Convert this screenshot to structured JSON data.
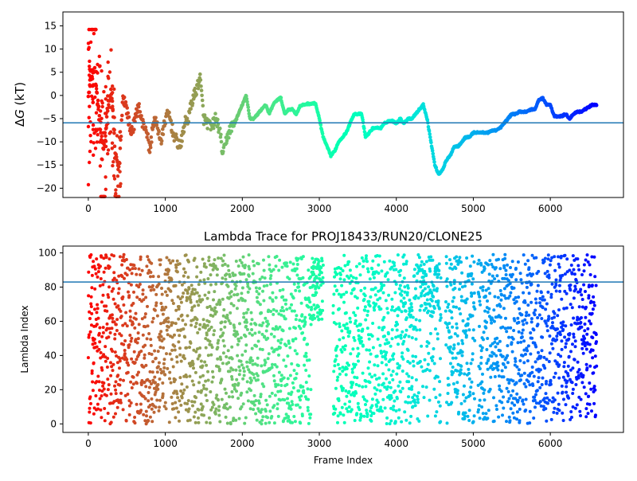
{
  "chart_data": [
    {
      "type": "scatter",
      "title": "",
      "xlabel": "",
      "ylabel": "ΔG (kT)",
      "ylabel_parts": {
        "delta": "Δ",
        "var": "G",
        "unit": " (kT)"
      },
      "xlim": [
        -330,
        6950
      ],
      "ylim": [
        -22,
        18
      ],
      "xticks": [
        0,
        1000,
        2000,
        3000,
        4000,
        5000,
        6000
      ],
      "yticks": [
        -20,
        -15,
        -10,
        -5,
        0,
        5,
        10,
        15
      ],
      "hline": -5.9,
      "hline_color": "#1f77b4",
      "colormap": "rainbow (reversed by frame index)",
      "trace_points": [
        [
          0,
          0
        ],
        [
          40,
          4
        ],
        [
          80,
          6
        ],
        [
          120,
          -1
        ],
        [
          160,
          -8
        ],
        [
          200,
          -12
        ],
        [
          250,
          -3
        ],
        [
          300,
          1
        ],
        [
          350,
          -13
        ],
        [
          400,
          -16
        ],
        [
          450,
          0
        ],
        [
          500,
          -3
        ],
        [
          550,
          -8
        ],
        [
          600,
          -6
        ],
        [
          650,
          -2
        ],
        [
          700,
          -6
        ],
        [
          750,
          -7
        ],
        [
          800,
          -12
        ],
        [
          850,
          -5
        ],
        [
          900,
          -7
        ],
        [
          950,
          -10
        ],
        [
          1000,
          -5
        ],
        [
          1050,
          -4
        ],
        [
          1100,
          -8
        ],
        [
          1150,
          -10
        ],
        [
          1200,
          -11
        ],
        [
          1250,
          -6
        ],
        [
          1300,
          -5
        ],
        [
          1350,
          -1
        ],
        [
          1400,
          1
        ],
        [
          1450,
          4
        ],
        [
          1500,
          -5
        ],
        [
          1550,
          -6
        ],
        [
          1600,
          -7
        ],
        [
          1650,
          -5
        ],
        [
          1700,
          -7
        ],
        [
          1750,
          -13
        ],
        [
          1800,
          -9
        ],
        [
          1850,
          -7
        ],
        [
          1900,
          -6
        ],
        [
          1950,
          -4
        ],
        [
          2000,
          -2
        ],
        [
          2050,
          0
        ],
        [
          2100,
          -5
        ],
        [
          2150,
          -5
        ],
        [
          2200,
          -4
        ],
        [
          2250,
          -3
        ],
        [
          2300,
          -2
        ],
        [
          2350,
          -4
        ],
        [
          2400,
          -2
        ],
        [
          2450,
          -1
        ],
        [
          2500,
          -0.5
        ],
        [
          2550,
          -4
        ],
        [
          2600,
          -3
        ],
        [
          2650,
          -3
        ],
        [
          2700,
          -4
        ],
        [
          2750,
          -2.3
        ],
        [
          2800,
          -2
        ],
        [
          2850,
          -1.8
        ],
        [
          2900,
          -1.8
        ],
        [
          2950,
          -1.7
        ],
        [
          3000,
          -5
        ],
        [
          3050,
          -9
        ],
        [
          3100,
          -11
        ],
        [
          3150,
          -13
        ],
        [
          3200,
          -12
        ],
        [
          3250,
          -10
        ],
        [
          3300,
          -9
        ],
        [
          3350,
          -8
        ],
        [
          3400,
          -6
        ],
        [
          3450,
          -4
        ],
        [
          3500,
          -4
        ],
        [
          3550,
          -4
        ],
        [
          3600,
          -9
        ],
        [
          3650,
          -8
        ],
        [
          3700,
          -7
        ],
        [
          3750,
          -7
        ],
        [
          3800,
          -7
        ],
        [
          3850,
          -6
        ],
        [
          3900,
          -5.5
        ],
        [
          3950,
          -5.5
        ],
        [
          4000,
          -6
        ],
        [
          4050,
          -5
        ],
        [
          4100,
          -6
        ],
        [
          4150,
          -5
        ],
        [
          4200,
          -5
        ],
        [
          4250,
          -4
        ],
        [
          4300,
          -3
        ],
        [
          4350,
          -2
        ],
        [
          4400,
          -5
        ],
        [
          4450,
          -10
        ],
        [
          4500,
          -15
        ],
        [
          4550,
          -17
        ],
        [
          4600,
          -16
        ],
        [
          4650,
          -14
        ],
        [
          4700,
          -13
        ],
        [
          4750,
          -11
        ],
        [
          4800,
          -11
        ],
        [
          4850,
          -10
        ],
        [
          4900,
          -9
        ],
        [
          4950,
          -9
        ],
        [
          5000,
          -8
        ],
        [
          5050,
          -8
        ],
        [
          5100,
          -8
        ],
        [
          5150,
          -8
        ],
        [
          5200,
          -8
        ],
        [
          5250,
          -7.5
        ],
        [
          5300,
          -7.5
        ],
        [
          5350,
          -7
        ],
        [
          5400,
          -6
        ],
        [
          5450,
          -5
        ],
        [
          5500,
          -4
        ],
        [
          5550,
          -4
        ],
        [
          5600,
          -3.5
        ],
        [
          5650,
          -3.5
        ],
        [
          5700,
          -3.5
        ],
        [
          5750,
          -3
        ],
        [
          5800,
          -3
        ],
        [
          5850,
          -1
        ],
        [
          5900,
          -0.5
        ],
        [
          5950,
          -2
        ],
        [
          6000,
          -2
        ],
        [
          6050,
          -4.5
        ],
        [
          6100,
          -4.5
        ],
        [
          6150,
          -4.5
        ],
        [
          6200,
          -4
        ],
        [
          6250,
          -5
        ],
        [
          6300,
          -4
        ],
        [
          6350,
          -3.5
        ],
        [
          6400,
          -3.5
        ],
        [
          6450,
          -3
        ],
        [
          6500,
          -2.5
        ],
        [
          6550,
          -2
        ],
        [
          6600,
          -2
        ]
      ]
    },
    {
      "type": "scatter",
      "title": "Lambda Trace for PROJ18433/RUN20/CLONE25",
      "xlabel": "Frame Index",
      "ylabel": "Lambda Index",
      "xlim": [
        -330,
        6950
      ],
      "ylim": [
        -5,
        104
      ],
      "xticks": [
        0,
        1000,
        2000,
        3000,
        4000,
        5000,
        6000
      ],
      "yticks": [
        0,
        20,
        40,
        60,
        80,
        100
      ],
      "hline": 83,
      "hline_color": "#1f77b4",
      "colormap": "rainbow (reversed by frame index)",
      "point_count_approx": 6600,
      "value_range": [
        0,
        99
      ]
    }
  ]
}
